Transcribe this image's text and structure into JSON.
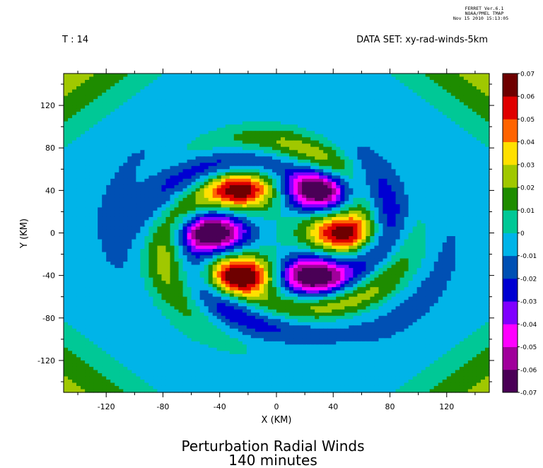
{
  "header": {
    "ferret_lines": [
      "FERRET Ver.6.1",
      "NOAA/PMEL TMAP",
      "Nov 15 2010 15:13:05"
    ],
    "time_label": "T : 14",
    "dataset_label": "DATA SET: xy-rad-winds-5km"
  },
  "footer": {
    "title_line1": "Perturbation Radial Winds",
    "title_line2": "140 minutes"
  },
  "chart_data": {
    "type": "heatmap",
    "title": "Perturbation Radial Winds",
    "subtitle": "140 minutes",
    "xlabel": "X (KM)",
    "ylabel": "Y (KM)",
    "xlim": [
      -150,
      150
    ],
    "ylim": [
      -150,
      150
    ],
    "x_ticks": [
      -120,
      -80,
      -40,
      0,
      40,
      80,
      120
    ],
    "y_ticks": [
      -120,
      -80,
      -40,
      0,
      40,
      80,
      120
    ],
    "x_tick_labels": [
      "-120",
      "-80",
      "-40",
      "0",
      "40",
      "80",
      "120"
    ],
    "y_tick_labels": [
      "-120",
      "-80",
      "-40",
      "0",
      "40",
      "80",
      "120"
    ],
    "colorbar": {
      "levels": [
        -0.07,
        -0.06,
        -0.05,
        -0.04,
        -0.03,
        -0.02,
        -0.01,
        0,
        0.01,
        0.02,
        0.03,
        0.04,
        0.05,
        0.06,
        0.07
      ],
      "labels": [
        "-0.07",
        "-0.06",
        "-0.05",
        "-0.04",
        "-0.03",
        "-0.02",
        "-0.01",
        "0",
        "0.01",
        "0.02",
        "0.03",
        "0.04",
        "0.05",
        "0.06",
        "0.07"
      ],
      "colors": [
        "#4a0056",
        "#a0009b",
        "#ff00ff",
        "#8000ff",
        "#0000d2",
        "#0050b4",
        "#00b4e8",
        "#00c896",
        "#1e8c00",
        "#a0c800",
        "#ffe000",
        "#ff6400",
        "#e00000",
        "#6e0000"
      ]
    },
    "features": [
      {
        "kind": "max",
        "x": 45,
        "y": 0,
        "value": 0.06
      },
      {
        "kind": "max",
        "x": -25,
        "y": 40,
        "value": 0.06
      },
      {
        "kind": "max",
        "x": -25,
        "y": -40,
        "value": 0.07
      },
      {
        "kind": "min",
        "x": 30,
        "y": 40,
        "value": -0.07
      },
      {
        "kind": "min",
        "x": -45,
        "y": 0,
        "value": -0.07
      },
      {
        "kind": "min",
        "x": 25,
        "y": -40,
        "value": -0.07
      }
    ],
    "grid": false,
    "legend_position": "right"
  }
}
